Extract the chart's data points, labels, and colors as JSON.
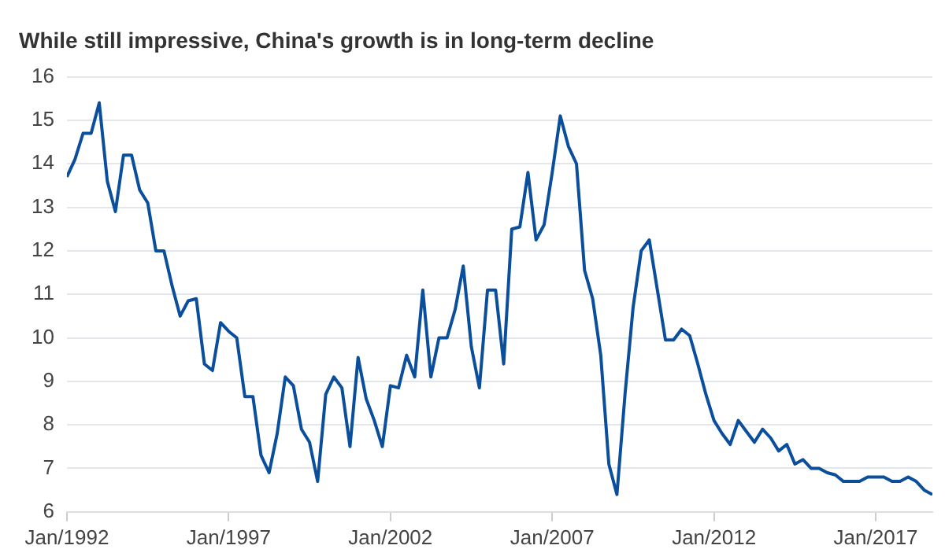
{
  "chart_data": {
    "type": "line",
    "title": "While still impressive, China's growth is in long-term decline",
    "x": [
      "1992-01",
      "1992-04",
      "1992-07",
      "1992-10",
      "1993-01",
      "1993-04",
      "1993-07",
      "1993-10",
      "1994-01",
      "1994-04",
      "1994-07",
      "1994-10",
      "1995-01",
      "1995-04",
      "1995-07",
      "1995-10",
      "1996-01",
      "1996-04",
      "1996-07",
      "1996-10",
      "1997-01",
      "1997-04",
      "1997-07",
      "1997-10",
      "1998-01",
      "1998-04",
      "1998-07",
      "1998-10",
      "1999-01",
      "1999-04",
      "1999-07",
      "1999-10",
      "2000-01",
      "2000-04",
      "2000-07",
      "2000-10",
      "2001-01",
      "2001-04",
      "2001-07",
      "2001-10",
      "2002-01",
      "2002-04",
      "2002-07",
      "2002-10",
      "2003-01",
      "2003-04",
      "2003-07",
      "2003-10",
      "2004-01",
      "2004-04",
      "2004-07",
      "2004-10",
      "2005-01",
      "2005-04",
      "2005-07",
      "2005-10",
      "2006-01",
      "2006-04",
      "2006-07",
      "2006-10",
      "2007-01",
      "2007-04",
      "2007-07",
      "2007-10",
      "2008-01",
      "2008-04",
      "2008-07",
      "2008-10",
      "2009-01",
      "2009-04",
      "2009-07",
      "2009-10",
      "2010-01",
      "2010-04",
      "2010-07",
      "2010-10",
      "2011-01",
      "2011-04",
      "2011-07",
      "2011-10",
      "2012-01",
      "2012-04",
      "2012-07",
      "2012-10",
      "2013-01",
      "2013-04",
      "2013-07",
      "2013-10",
      "2014-01",
      "2014-04",
      "2014-07",
      "2014-10",
      "2015-01",
      "2015-04",
      "2015-07",
      "2015-10",
      "2016-01",
      "2016-04",
      "2016-07",
      "2016-10",
      "2017-01",
      "2017-04",
      "2017-07",
      "2017-10",
      "2018-01",
      "2018-04",
      "2018-07",
      "2018-10"
    ],
    "series": [
      {
        "color": "#0b4f9c",
        "values": [
          13.7,
          14.1,
          14.7,
          14.7,
          15.4,
          13.6,
          12.9,
          14.2,
          14.2,
          13.4,
          13.1,
          12.0,
          12.0,
          11.2,
          10.5,
          10.85,
          10.9,
          9.4,
          9.25,
          10.35,
          10.15,
          10.0,
          8.65,
          8.65,
          7.3,
          6.9,
          7.8,
          9.1,
          8.9,
          7.9,
          7.6,
          6.7,
          8.7,
          9.1,
          8.85,
          7.5,
          9.55,
          8.6,
          8.1,
          7.5,
          8.9,
          8.85,
          9.6,
          9.1,
          11.1,
          9.1,
          10.0,
          10.0,
          10.65,
          11.65,
          9.8,
          8.85,
          11.1,
          11.1,
          9.4,
          12.5,
          12.55,
          13.8,
          12.25,
          12.6,
          13.8,
          15.1,
          14.4,
          14.0,
          11.55,
          10.9,
          9.6,
          7.1,
          6.4,
          8.7,
          10.7,
          12.0,
          12.25,
          11.1,
          9.95,
          9.95,
          10.2,
          10.05,
          9.4,
          8.7,
          8.1,
          7.8,
          7.55,
          8.1,
          7.85,
          7.6,
          7.9,
          7.7,
          7.4,
          7.55,
          7.1,
          7.2,
          7.0,
          7.0,
          6.9,
          6.85,
          6.7,
          6.7,
          6.7,
          6.8,
          6.8,
          6.8,
          6.7,
          6.7,
          6.8,
          6.7,
          6.5,
          6.4
        ]
      }
    ],
    "xlim": [
      "1992-01",
      "2018-10"
    ],
    "xticks": [
      {
        "value": "1992-01",
        "label": "Jan/1992"
      },
      {
        "value": "1997-01",
        "label": "Jan/1997"
      },
      {
        "value": "2002-01",
        "label": "Jan/2002"
      },
      {
        "value": "2007-01",
        "label": "Jan/2007"
      },
      {
        "value": "2012-01",
        "label": "Jan/2012"
      },
      {
        "value": "2017-01",
        "label": "Jan/2017"
      }
    ],
    "ylim": [
      6,
      16
    ],
    "yticks": [
      6,
      7,
      8,
      9,
      10,
      11,
      12,
      13,
      14,
      15,
      16
    ],
    "grid": "y",
    "legend": false,
    "marker": "none",
    "line_style": "solid"
  }
}
